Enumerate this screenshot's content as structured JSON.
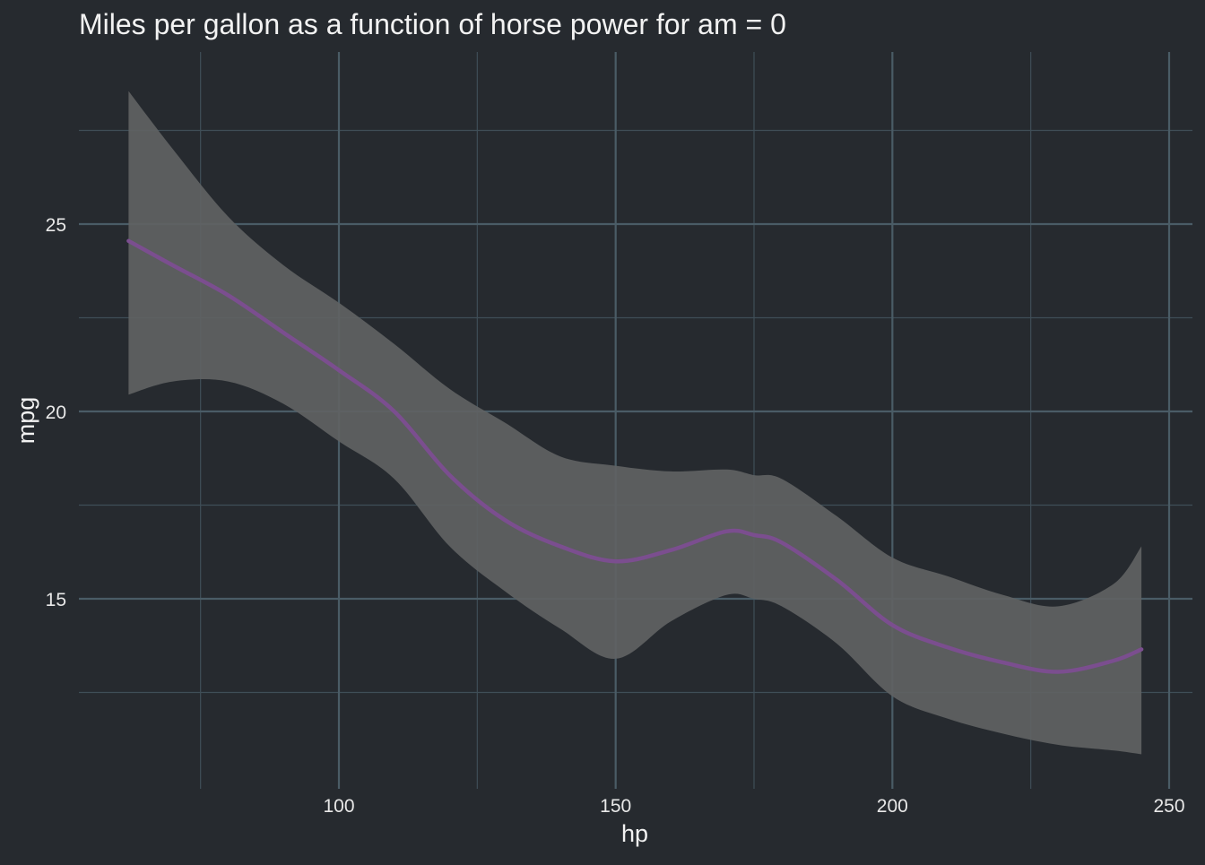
{
  "chart_data": {
    "type": "line",
    "title": "Miles per gallon as a function of horse power for am = 0",
    "xlabel": "hp",
    "ylabel": "mpg",
    "xlim": [
      52,
      255
    ],
    "ylim": [
      10,
      28
    ],
    "x_ticks": [
      100,
      150,
      200,
      250
    ],
    "y_ticks": [
      15,
      20,
      25
    ],
    "grid": true,
    "legend": "none",
    "colors": {
      "background": "#262A2F",
      "grid_major": "#4A5C66",
      "grid_minor": "#3F4E57",
      "ribbon": "#5F6263",
      "line": "#7B4E8F",
      "text": "#E8E8E8"
    },
    "series": [
      {
        "x": [
          62,
          70,
          80,
          90,
          100,
          110,
          120,
          130,
          140,
          150,
          160,
          170,
          175,
          180,
          190,
          200,
          210,
          220,
          230,
          240,
          245
        ],
        "values": [
          24.55,
          23.9,
          23.1,
          22.1,
          21.1,
          20.0,
          18.3,
          17.1,
          16.4,
          16.0,
          16.3,
          16.8,
          16.7,
          16.5,
          15.5,
          14.3,
          13.7,
          13.3,
          13.05,
          13.35,
          13.65
        ],
        "lower": [
          20.45,
          20.8,
          20.8,
          20.2,
          19.2,
          18.2,
          16.4,
          15.2,
          14.2,
          13.4,
          14.4,
          15.1,
          15.0,
          14.8,
          13.8,
          12.4,
          11.8,
          11.4,
          11.1,
          10.95,
          10.85
        ],
        "upper": [
          28.55,
          27.0,
          25.2,
          23.9,
          22.9,
          21.8,
          20.6,
          19.7,
          18.8,
          18.55,
          18.4,
          18.45,
          18.3,
          18.2,
          17.2,
          16.1,
          15.6,
          15.1,
          14.8,
          15.4,
          16.4
        ]
      }
    ]
  }
}
